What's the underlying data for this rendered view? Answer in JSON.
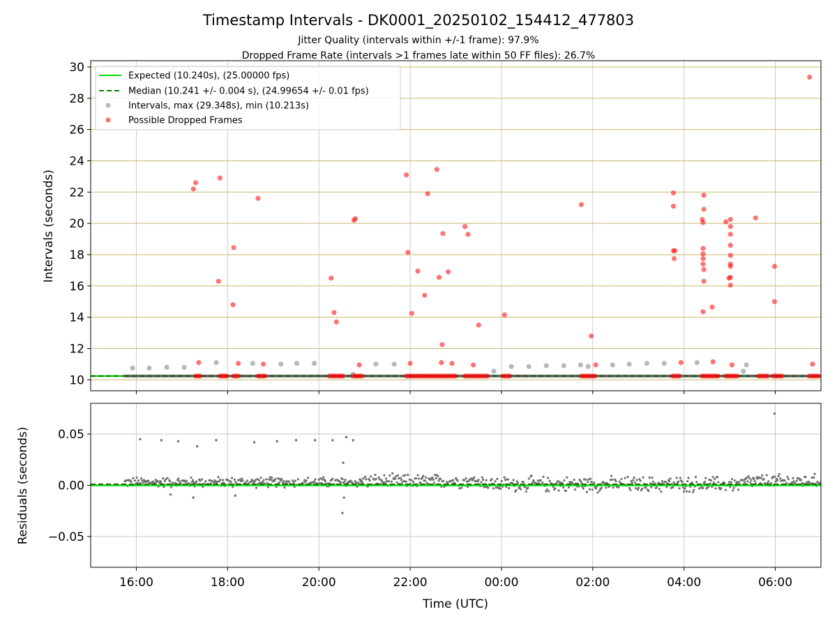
{
  "chart_data": {
    "type": "scatter",
    "title": "Timestamp Intervals - DK0001_20250102_154412_477803",
    "subtitle_lines": [
      "Jitter Quality (intervals within +/-1 frame): 97.9%",
      "Dropped Frame Rate (intervals >1 frames late within 50 FF files): 26.7%"
    ],
    "xlabel": "Time (UTC)",
    "x_axis": {
      "range": [
        "2025-01-02T15:00",
        "2025-01-03T07:00"
      ],
      "ticks": [
        {
          "time": "2025-01-02T16:00",
          "label": "16:00"
        },
        {
          "time": "2025-01-02T18:00",
          "label": "18:00"
        },
        {
          "time": "2025-01-02T20:00",
          "label": "20:00"
        },
        {
          "time": "2025-01-02T22:00",
          "label": "22:00"
        },
        {
          "time": "2025-01-03T00:00",
          "label": "00:00"
        },
        {
          "time": "2025-01-03T02:00",
          "label": "02:00"
        },
        {
          "time": "2025-01-03T04:00",
          "label": "04:00"
        },
        {
          "time": "2025-01-03T06:00",
          "label": "06:00"
        }
      ]
    },
    "top_panel": {
      "ylabel": "Intervals (seconds)",
      "ylim": [
        9.3,
        30.4
      ],
      "yticks": [
        10,
        12,
        14,
        16,
        18,
        20,
        22,
        24,
        26,
        28,
        30
      ],
      "expected": 10.24,
      "median": 10.241,
      "legend": {
        "placement": "top-left",
        "entries": [
          {
            "label": "Expected (10.240s), (25.00000 fps)",
            "style": "line",
            "color": "#00e000"
          },
          {
            "label": "Median (10.241 +/- 0.004 s), (24.99654 +/- 0.01 fps)",
            "style": "dashed",
            "color": "#008000"
          },
          {
            "label": "Intervals, max (29.348s), min (10.213s)",
            "style": "point",
            "color": "#808080"
          },
          {
            "label": "Possible Dropped Frames",
            "style": "point",
            "color": "#ff0000"
          }
        ]
      },
      "intervals": [
        {
          "time": "2025-01-02T15:55",
          "value": 10.75
        },
        {
          "time": "2025-01-02T16:17",
          "value": 10.75
        },
        {
          "time": "2025-01-02T16:40",
          "value": 10.8
        },
        {
          "time": "2025-01-02T17:03",
          "value": 10.8
        },
        {
          "time": "2025-01-02T17:45",
          "value": 11.1
        },
        {
          "time": "2025-01-02T18:33",
          "value": 11.05
        },
        {
          "time": "2025-01-02T19:10",
          "value": 11.0
        },
        {
          "time": "2025-01-02T19:31",
          "value": 11.05
        },
        {
          "time": "2025-01-02T19:54",
          "value": 11.05
        },
        {
          "time": "2025-01-02T20:45",
          "value": 10.35
        },
        {
          "time": "2025-01-02T21:15",
          "value": 11.0
        },
        {
          "time": "2025-01-02T21:39",
          "value": 11.0
        },
        {
          "time": "2025-01-02T23:50",
          "value": 10.55
        },
        {
          "time": "2025-01-03T00:13",
          "value": 10.85
        },
        {
          "time": "2025-01-03T00:36",
          "value": 10.85
        },
        {
          "time": "2025-01-03T00:59",
          "value": 10.9
        },
        {
          "time": "2025-01-03T01:22",
          "value": 10.9
        },
        {
          "time": "2025-01-03T01:44",
          "value": 10.95
        },
        {
          "time": "2025-01-03T01:54",
          "value": 10.85
        },
        {
          "time": "2025-01-03T02:26",
          "value": 10.95
        },
        {
          "time": "2025-01-03T02:48",
          "value": 11.0
        },
        {
          "time": "2025-01-03T03:11",
          "value": 11.05
        },
        {
          "time": "2025-01-03T03:34",
          "value": 11.05
        },
        {
          "time": "2025-01-03T04:17",
          "value": 11.1
        },
        {
          "time": "2025-01-03T05:18",
          "value": 10.55
        },
        {
          "time": "2025-01-03T05:22",
          "value": 10.95
        }
      ],
      "dropped_frames": [
        {
          "time": "2025-01-02T17:15",
          "value": 22.2
        },
        {
          "time": "2025-01-02T17:18",
          "value": 22.6
        },
        {
          "time": "2025-01-02T17:22",
          "value": 11.1
        },
        {
          "time": "2025-01-02T17:48",
          "value": 16.3
        },
        {
          "time": "2025-01-02T17:50",
          "value": 22.9
        },
        {
          "time": "2025-01-02T18:07",
          "value": 14.8
        },
        {
          "time": "2025-01-02T18:08",
          "value": 18.45
        },
        {
          "time": "2025-01-02T18:14",
          "value": 11.05
        },
        {
          "time": "2025-01-02T18:40",
          "value": 21.6
        },
        {
          "time": "2025-01-02T18:47",
          "value": 11.0
        },
        {
          "time": "2025-01-02T20:16",
          "value": 16.5
        },
        {
          "time": "2025-01-02T20:20",
          "value": 14.3
        },
        {
          "time": "2025-01-02T20:23",
          "value": 13.7
        },
        {
          "time": "2025-01-02T20:46",
          "value": 20.2
        },
        {
          "time": "2025-01-02T20:48",
          "value": 20.3
        },
        {
          "time": "2025-01-02T20:53",
          "value": 10.95
        },
        {
          "time": "2025-01-02T21:55",
          "value": 23.1
        },
        {
          "time": "2025-01-02T21:57",
          "value": 18.15
        },
        {
          "time": "2025-01-02T22:00",
          "value": 11.05
        },
        {
          "time": "2025-01-02T22:02",
          "value": 14.25
        },
        {
          "time": "2025-01-02T22:10",
          "value": 16.95
        },
        {
          "time": "2025-01-02T22:19",
          "value": 15.4
        },
        {
          "time": "2025-01-02T22:23",
          "value": 21.9
        },
        {
          "time": "2025-01-02T22:35",
          "value": 23.45
        },
        {
          "time": "2025-01-02T22:38",
          "value": 16.55
        },
        {
          "time": "2025-01-02T22:41",
          "value": 11.1
        },
        {
          "time": "2025-01-02T22:42",
          "value": 12.25
        },
        {
          "time": "2025-01-02T22:43",
          "value": 19.35
        },
        {
          "time": "2025-01-02T22:50",
          "value": 16.9
        },
        {
          "time": "2025-01-02T22:55",
          "value": 11.05
        },
        {
          "time": "2025-01-02T23:12",
          "value": 19.8
        },
        {
          "time": "2025-01-02T23:16",
          "value": 19.3
        },
        {
          "time": "2025-01-02T23:23",
          "value": 10.95
        },
        {
          "time": "2025-01-02T23:30",
          "value": 13.5
        },
        {
          "time": "2025-01-03T00:04",
          "value": 14.15
        },
        {
          "time": "2025-01-03T01:45",
          "value": 21.2
        },
        {
          "time": "2025-01-03T01:58",
          "value": 12.8
        },
        {
          "time": "2025-01-03T02:04",
          "value": 10.95
        },
        {
          "time": "2025-01-03T03:46",
          "value": 21.95
        },
        {
          "time": "2025-01-03T03:46",
          "value": 21.1
        },
        {
          "time": "2025-01-03T03:46",
          "value": 18.25
        },
        {
          "time": "2025-01-03T03:47",
          "value": 17.75
        },
        {
          "time": "2025-01-03T03:48",
          "value": 18.25
        },
        {
          "time": "2025-01-03T03:56",
          "value": 11.1
        },
        {
          "time": "2025-01-03T04:24",
          "value": 20.25
        },
        {
          "time": "2025-01-03T04:25",
          "value": 20.05
        },
        {
          "time": "2025-01-03T04:25",
          "value": 14.35
        },
        {
          "time": "2025-01-03T04:25",
          "value": 18.4
        },
        {
          "time": "2025-01-03T04:25",
          "value": 18.05
        },
        {
          "time": "2025-01-03T04:25",
          "value": 17.75
        },
        {
          "time": "2025-01-03T04:25",
          "value": 17.4
        },
        {
          "time": "2025-01-03T04:26",
          "value": 21.8
        },
        {
          "time": "2025-01-03T04:26",
          "value": 20.9
        },
        {
          "time": "2025-01-03T04:26",
          "value": 17.05
        },
        {
          "time": "2025-01-03T04:26",
          "value": 16.3
        },
        {
          "time": "2025-01-03T04:37",
          "value": 14.65
        },
        {
          "time": "2025-01-03T04:38",
          "value": 11.15
        },
        {
          "time": "2025-01-03T04:55",
          "value": 20.1
        },
        {
          "time": "2025-01-03T04:59",
          "value": 16.5
        },
        {
          "time": "2025-01-03T05:01",
          "value": 20.25
        },
        {
          "time": "2025-01-03T05:01",
          "value": 19.8
        },
        {
          "time": "2025-01-03T05:01",
          "value": 19.3
        },
        {
          "time": "2025-01-03T05:01",
          "value": 18.6
        },
        {
          "time": "2025-01-03T05:01",
          "value": 17.95
        },
        {
          "time": "2025-01-03T05:01",
          "value": 17.4
        },
        {
          "time": "2025-01-03T05:01",
          "value": 17.25
        },
        {
          "time": "2025-01-03T05:01",
          "value": 16.55
        },
        {
          "time": "2025-01-03T05:01",
          "value": 16.05
        },
        {
          "time": "2025-01-03T05:03",
          "value": 10.95
        },
        {
          "time": "2025-01-03T05:34",
          "value": 20.35
        },
        {
          "time": "2025-01-03T05:59",
          "value": 17.25
        },
        {
          "time": "2025-01-03T05:59",
          "value": 15.0
        },
        {
          "time": "2025-01-03T06:45",
          "value": 29.35
        },
        {
          "time": "2025-01-03T06:49",
          "value": 11.0
        }
      ],
      "dropped_frame_clusters": [
        {
          "start": "2025-01-02T17:18",
          "end": "2025-01-02T17:25",
          "value": 10.24
        },
        {
          "start": "2025-01-02T17:50",
          "end": "2025-01-02T18:00",
          "value": 10.24
        },
        {
          "start": "2025-01-02T18:08",
          "end": "2025-01-02T18:15",
          "value": 10.24
        },
        {
          "start": "2025-01-02T18:40",
          "end": "2025-01-02T18:49",
          "value": 10.24
        },
        {
          "start": "2025-01-02T20:14",
          "end": "2025-01-02T20:32",
          "value": 10.24
        },
        {
          "start": "2025-01-02T20:45",
          "end": "2025-01-02T20:57",
          "value": 10.24
        },
        {
          "start": "2025-01-02T21:55",
          "end": "2025-01-02T23:02",
          "value": 10.24
        },
        {
          "start": "2025-01-02T23:12",
          "end": "2025-01-02T23:42",
          "value": 10.24
        },
        {
          "start": "2025-01-03T00:02",
          "end": "2025-01-03T00:13",
          "value": 10.24
        },
        {
          "start": "2025-01-03T01:45",
          "end": "2025-01-03T02:04",
          "value": 10.24
        },
        {
          "start": "2025-01-03T03:45",
          "end": "2025-01-03T03:56",
          "value": 10.24
        },
        {
          "start": "2025-01-03T04:24",
          "end": "2025-01-03T04:46",
          "value": 10.24
        },
        {
          "start": "2025-01-03T04:55",
          "end": "2025-01-03T05:12",
          "value": 10.24
        },
        {
          "start": "2025-01-03T05:38",
          "end": "2025-01-03T05:50",
          "value": 10.24
        },
        {
          "start": "2025-01-03T05:57",
          "end": "2025-01-03T06:11",
          "value": 10.24
        },
        {
          "start": "2025-01-03T06:45",
          "end": "2025-01-03T06:58",
          "value": 10.24
        }
      ]
    },
    "bottom_panel": {
      "ylabel": "Residuals (seconds)",
      "ylim": [
        -0.08,
        0.08
      ],
      "yticks": [
        {
          "value": 0.05,
          "label": "0.05"
        },
        {
          "value": 0.0,
          "label": "0.00"
        },
        {
          "value": -0.05,
          "label": "−0.05"
        }
      ],
      "expected": 0.0,
      "median": 0.001,
      "residual_bands": [
        {
          "start": "2025-01-02T15:45",
          "end": "2025-01-02T20:55",
          "center": 0.003,
          "spread": 0.006
        },
        {
          "start": "2025-01-02T20:55",
          "end": "2025-01-02T23:40",
          "center": 0.004,
          "spread": 0.008
        },
        {
          "start": "2025-01-02T23:40",
          "end": "2025-01-03T05:20",
          "center": 0.001,
          "spread": 0.009
        },
        {
          "start": "2025-01-03T05:20",
          "end": "2025-01-03T07:00",
          "center": 0.004,
          "spread": 0.008
        }
      ],
      "outliers": [
        {
          "time": "2025-01-02T16:05",
          "value": 0.045
        },
        {
          "time": "2025-01-02T16:33",
          "value": 0.044
        },
        {
          "time": "2025-01-02T16:55",
          "value": 0.043
        },
        {
          "time": "2025-01-02T17:20",
          "value": 0.038
        },
        {
          "time": "2025-01-02T17:45",
          "value": 0.044
        },
        {
          "time": "2025-01-02T18:35",
          "value": 0.042
        },
        {
          "time": "2025-01-02T19:05",
          "value": 0.043
        },
        {
          "time": "2025-01-02T19:30",
          "value": 0.044
        },
        {
          "time": "2025-01-02T19:55",
          "value": 0.044
        },
        {
          "time": "2025-01-02T20:18",
          "value": 0.044
        },
        {
          "time": "2025-01-02T20:36",
          "value": 0.047
        },
        {
          "time": "2025-01-02T20:45",
          "value": 0.044
        },
        {
          "time": "2025-01-02T20:32",
          "value": 0.022
        },
        {
          "time": "2025-01-02T20:31",
          "value": -0.027
        },
        {
          "time": "2025-01-02T20:33",
          "value": -0.012
        },
        {
          "time": "2025-01-02T17:15",
          "value": -0.012
        },
        {
          "time": "2025-01-02T18:10",
          "value": -0.01
        },
        {
          "time": "2025-01-02T16:45",
          "value": -0.009
        },
        {
          "time": "2025-01-03T05:59",
          "value": 0.07
        }
      ]
    }
  }
}
